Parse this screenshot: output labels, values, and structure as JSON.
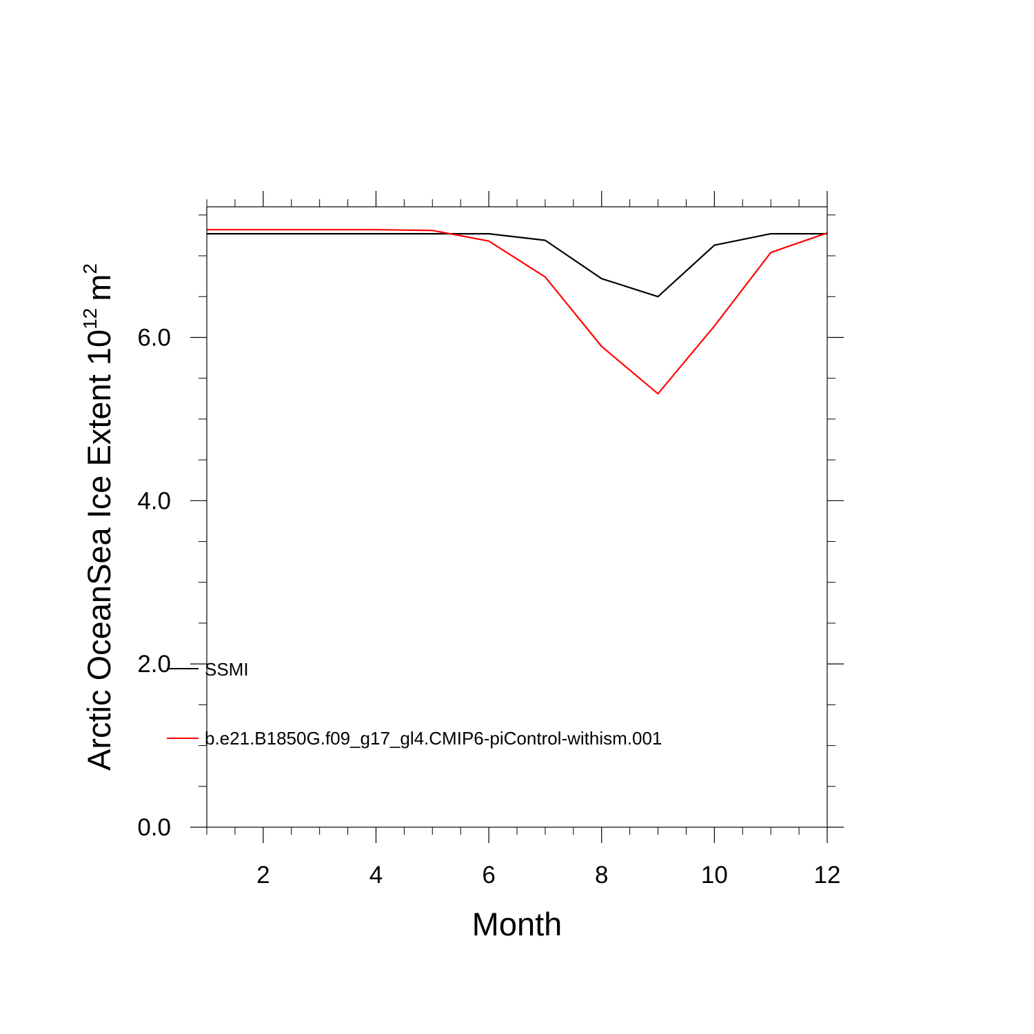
{
  "chart_data": {
    "type": "line",
    "xlabel": "Month",
    "ylabel": {
      "prefix": "Arctic OceanSea Ice Extent 10",
      "exponent": "12",
      "unit": "m",
      "unit_exponent": "2"
    },
    "xlim": [
      1,
      12
    ],
    "ylim": [
      0,
      7.6
    ],
    "xticks": [
      2,
      4,
      6,
      8,
      10,
      12
    ],
    "xtick_labels": [
      "2",
      "4",
      "6",
      "8",
      "10",
      "12"
    ],
    "yticks": [
      0,
      2,
      4,
      6
    ],
    "ytick_labels": [
      "0.0",
      "2.0",
      "4.0",
      "6.0"
    ],
    "x": [
      1,
      2,
      3,
      4,
      5,
      6,
      7,
      8,
      9,
      10,
      11,
      12
    ],
    "series": [
      {
        "name": "SSMI",
        "color": "#000000",
        "values": [
          7.27,
          7.27,
          7.27,
          7.27,
          7.27,
          7.27,
          7.19,
          6.72,
          6.5,
          7.13,
          7.27,
          7.27
        ]
      },
      {
        "name": "b.e21.B1850G.f09_g17_gl4.CMIP6-piControl-withism.001",
        "color": "#ff0000",
        "values": [
          7.32,
          7.32,
          7.32,
          7.32,
          7.31,
          7.18,
          6.74,
          5.89,
          5.31,
          6.14,
          7.04,
          7.28
        ]
      }
    ],
    "legend_placement": "lower-left inside",
    "grid": false
  }
}
